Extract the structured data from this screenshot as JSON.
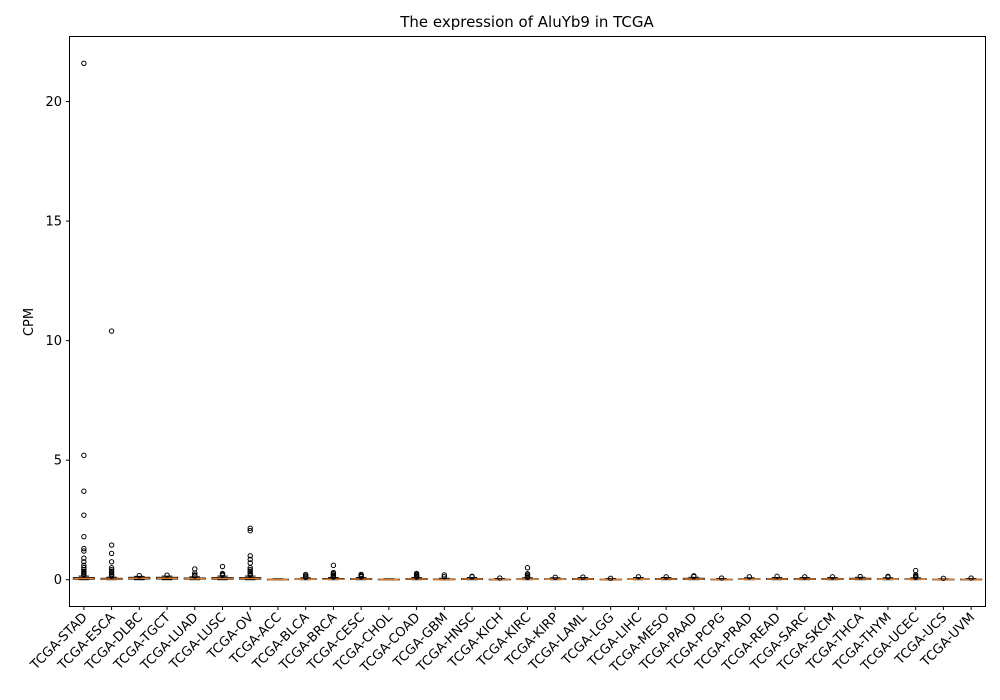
{
  "chart_data": {
    "type": "box",
    "title": "The expression of AluYb9 in TCGA",
    "xlabel": "",
    "ylabel": "CPM",
    "ylim": [
      -1.1,
      22.7
    ],
    "yticks": [
      0,
      5,
      10,
      15,
      20
    ],
    "grid": false,
    "colors": {
      "box": "#000000",
      "median": "#e07b2a",
      "outlier_edge": "#000000"
    },
    "categories": [
      "TCGA-STAD",
      "TCGA-ESCA",
      "TCGA-DLBC",
      "TCGA-TGCT",
      "TCGA-LUAD",
      "TCGA-LUSC",
      "TCGA-OV",
      "TCGA-ACC",
      "TCGA-BLCA",
      "TCGA-BRCA",
      "TCGA-CESC",
      "TCGA-CHOL",
      "TCGA-COAD",
      "TCGA-GBM",
      "TCGA-HNSC",
      "TCGA-KICH",
      "TCGA-KIRC",
      "TCGA-KIRP",
      "TCGA-LAML",
      "TCGA-LGG",
      "TCGA-LIHC",
      "TCGA-MESO",
      "TCGA-PAAD",
      "TCGA-PCPG",
      "TCGA-PRAD",
      "TCGA-READ",
      "TCGA-SARC",
      "TCGA-SKCM",
      "TCGA-THCA",
      "TCGA-THYM",
      "TCGA-UCEC",
      "TCGA-UCS",
      "TCGA-UVM"
    ],
    "boxes": [
      {
        "q1": 0.02,
        "median": 0.05,
        "q3": 0.09,
        "whislo": 0.0,
        "whishi": 0.15,
        "fliers": [
          21.6,
          5.2,
          3.7,
          2.7,
          1.8,
          1.3,
          1.2,
          0.9,
          0.75,
          0.6,
          0.5,
          0.42,
          0.35,
          0.3,
          0.25,
          0.2
        ]
      },
      {
        "q1": 0.01,
        "median": 0.03,
        "q3": 0.06,
        "whislo": 0.0,
        "whishi": 0.1,
        "fliers": [
          10.4,
          1.45,
          1.1,
          0.75,
          0.5,
          0.42,
          0.35,
          0.28,
          0.22,
          0.18,
          0.14
        ]
      },
      {
        "q1": 0.03,
        "median": 0.06,
        "q3": 0.1,
        "whislo": 0.0,
        "whishi": 0.14,
        "fliers": [
          0.17
        ]
      },
      {
        "q1": 0.03,
        "median": 0.06,
        "q3": 0.1,
        "whislo": 0.0,
        "whishi": 0.15,
        "fliers": [
          0.19
        ]
      },
      {
        "q1": 0.02,
        "median": 0.04,
        "q3": 0.07,
        "whislo": 0.0,
        "whishi": 0.12,
        "fliers": [
          0.45,
          0.28,
          0.2,
          0.16
        ]
      },
      {
        "q1": 0.02,
        "median": 0.05,
        "q3": 0.09,
        "whislo": 0.0,
        "whishi": 0.15,
        "fliers": [
          0.55,
          0.26,
          0.22,
          0.18
        ]
      },
      {
        "q1": 0.02,
        "median": 0.05,
        "q3": 0.09,
        "whislo": 0.0,
        "whishi": 0.15,
        "fliers": [
          2.15,
          2.05,
          1.0,
          0.85,
          0.7,
          0.5,
          0.42,
          0.35,
          0.28,
          0.22,
          0.18
        ]
      },
      {
        "q1": 0.0,
        "median": 0.01,
        "q3": 0.02,
        "whislo": 0.0,
        "whishi": 0.04,
        "fliers": []
      },
      {
        "q1": 0.01,
        "median": 0.02,
        "q3": 0.04,
        "whislo": 0.0,
        "whishi": 0.08,
        "fliers": [
          0.22,
          0.16,
          0.12,
          0.1
        ]
      },
      {
        "q1": 0.01,
        "median": 0.02,
        "q3": 0.05,
        "whislo": 0.0,
        "whishi": 0.09,
        "fliers": [
          0.6,
          0.3,
          0.25,
          0.2,
          0.16,
          0.13,
          0.11
        ]
      },
      {
        "q1": 0.01,
        "median": 0.03,
        "q3": 0.05,
        "whislo": 0.0,
        "whishi": 0.09,
        "fliers": [
          0.22,
          0.18,
          0.14,
          0.12
        ]
      },
      {
        "q1": 0.0,
        "median": 0.01,
        "q3": 0.02,
        "whislo": 0.0,
        "whishi": 0.04,
        "fliers": []
      },
      {
        "q1": 0.01,
        "median": 0.03,
        "q3": 0.05,
        "whislo": 0.0,
        "whishi": 0.09,
        "fliers": [
          0.26,
          0.22,
          0.18,
          0.14,
          0.12
        ]
      },
      {
        "q1": 0.0,
        "median": 0.01,
        "q3": 0.03,
        "whislo": 0.0,
        "whishi": 0.06,
        "fliers": [
          0.2,
          0.12
        ]
      },
      {
        "q1": 0.01,
        "median": 0.03,
        "q3": 0.05,
        "whislo": 0.0,
        "whishi": 0.09,
        "fliers": [
          0.14,
          0.12
        ]
      },
      {
        "q1": 0.0,
        "median": 0.01,
        "q3": 0.02,
        "whislo": 0.0,
        "whishi": 0.05,
        "fliers": [
          0.07
        ]
      },
      {
        "q1": 0.01,
        "median": 0.02,
        "q3": 0.04,
        "whislo": 0.0,
        "whishi": 0.08,
        "fliers": [
          0.5,
          0.25,
          0.2,
          0.15,
          0.1
        ]
      },
      {
        "q1": 0.01,
        "median": 0.02,
        "q3": 0.04,
        "whislo": 0.0,
        "whishi": 0.08,
        "fliers": [
          0.1
        ]
      },
      {
        "q1": 0.01,
        "median": 0.03,
        "q3": 0.05,
        "whislo": 0.0,
        "whishi": 0.09,
        "fliers": [
          0.11
        ]
      },
      {
        "q1": 0.0,
        "median": 0.01,
        "q3": 0.02,
        "whislo": 0.0,
        "whishi": 0.05,
        "fliers": [
          0.06
        ]
      },
      {
        "q1": 0.01,
        "median": 0.02,
        "q3": 0.04,
        "whislo": 0.0,
        "whishi": 0.09,
        "fliers": [
          0.12
        ]
      },
      {
        "q1": 0.01,
        "median": 0.03,
        "q3": 0.05,
        "whislo": 0.0,
        "whishi": 0.09,
        "fliers": [
          0.12
        ]
      },
      {
        "q1": 0.01,
        "median": 0.03,
        "q3": 0.06,
        "whislo": 0.0,
        "whishi": 0.1,
        "fliers": [
          0.16,
          0.13
        ]
      },
      {
        "q1": 0.0,
        "median": 0.01,
        "q3": 0.02,
        "whislo": 0.0,
        "whishi": 0.05,
        "fliers": [
          0.07
        ]
      },
      {
        "q1": 0.01,
        "median": 0.02,
        "q3": 0.04,
        "whislo": 0.0,
        "whishi": 0.08,
        "fliers": [
          0.12
        ]
      },
      {
        "q1": 0.01,
        "median": 0.03,
        "q3": 0.05,
        "whislo": 0.0,
        "whishi": 0.09,
        "fliers": [
          0.14
        ]
      },
      {
        "q1": 0.01,
        "median": 0.03,
        "q3": 0.05,
        "whislo": 0.0,
        "whishi": 0.09,
        "fliers": [
          0.12
        ]
      },
      {
        "q1": 0.01,
        "median": 0.03,
        "q3": 0.05,
        "whislo": 0.0,
        "whishi": 0.09,
        "fliers": [
          0.12
        ]
      },
      {
        "q1": 0.01,
        "median": 0.03,
        "q3": 0.06,
        "whislo": 0.0,
        "whishi": 0.1,
        "fliers": [
          0.13
        ]
      },
      {
        "q1": 0.01,
        "median": 0.02,
        "q3": 0.04,
        "whislo": 0.0,
        "whishi": 0.08,
        "fliers": [
          0.14,
          0.11
        ]
      },
      {
        "q1": 0.01,
        "median": 0.02,
        "q3": 0.04,
        "whislo": 0.0,
        "whishi": 0.08,
        "fliers": [
          0.38,
          0.2,
          0.15,
          0.12,
          0.1
        ]
      },
      {
        "q1": 0.0,
        "median": 0.01,
        "q3": 0.02,
        "whislo": 0.0,
        "whishi": 0.04,
        "fliers": [
          0.06
        ]
      },
      {
        "q1": 0.0,
        "median": 0.01,
        "q3": 0.02,
        "whislo": 0.0,
        "whishi": 0.05,
        "fliers": [
          0.07
        ]
      }
    ]
  }
}
